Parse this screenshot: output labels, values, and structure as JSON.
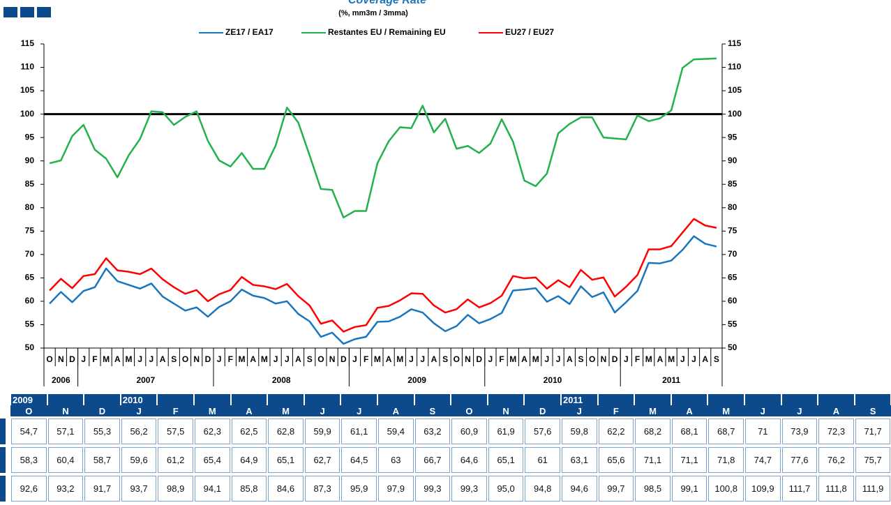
{
  "chart_data": {
    "type": "line",
    "title": "Coverage Rate",
    "subtitle": "(%, mm3m / 3mma)",
    "categories": [
      "O",
      "N",
      "D",
      "J",
      "F",
      "M",
      "A",
      "M",
      "J",
      "J",
      "A",
      "S",
      "O",
      "N",
      "D",
      "J",
      "F",
      "M",
      "A",
      "M",
      "J",
      "J",
      "A",
      "S",
      "O",
      "N",
      "D",
      "J",
      "F",
      "M",
      "A",
      "M",
      "J",
      "J",
      "A",
      "S",
      "O",
      "N",
      "D",
      "J",
      "F",
      "M",
      "A",
      "M",
      "J",
      "J",
      "A",
      "S",
      "O",
      "N",
      "D",
      "J",
      "F",
      "M",
      "A",
      "M",
      "J",
      "J",
      "A",
      "S"
    ],
    "years": [
      "2006",
      "2007",
      "2008",
      "2009",
      "2010",
      "2011"
    ],
    "series": [
      {
        "name": "ZE17 / EA17",
        "color": "#1b75bc",
        "values": [
          59.5,
          62,
          59.8,
          62.2,
          63,
          67,
          64.3,
          63.5,
          62.7,
          63.8,
          61,
          59.5,
          58,
          58.7,
          56.7,
          58.8,
          60,
          62.5,
          61.2,
          60.7,
          59.5,
          60,
          57.3,
          55.7,
          52.4,
          53.3,
          50.9,
          51.9,
          52.4,
          55.6,
          55.7,
          56.7,
          58.3,
          57.6,
          55.3,
          53.6,
          54.7,
          57.1,
          55.3,
          56.2,
          57.5,
          62.3,
          62.5,
          62.8,
          59.9,
          61.1,
          59.4,
          63.2,
          60.9,
          61.9,
          57.6,
          59.8,
          62.2,
          68.2,
          68.1,
          68.7,
          71,
          73.9,
          72.3,
          71.7
        ]
      },
      {
        "name": "Restantes EU / Remaining EU",
        "color": "#22b14c",
        "values": [
          89.5,
          90.1,
          95.3,
          97.7,
          92.4,
          90.5,
          86.5,
          91.2,
          94.7,
          100.6,
          100.4,
          97.7,
          99.4,
          100.6,
          94.3,
          90.1,
          88.8,
          91.7,
          88.3,
          88.3,
          93.3,
          101.4,
          98.2,
          91.2,
          84,
          83.8,
          77.9,
          79.3,
          79.3,
          89.5,
          94.2,
          97.2,
          97,
          101.8,
          96.1,
          99,
          92.6,
          93.2,
          91.7,
          93.7,
          98.9,
          94.1,
          85.8,
          84.6,
          87.3,
          95.9,
          97.9,
          99.3,
          99.3,
          95,
          94.8,
          94.6,
          99.7,
          98.5,
          99.1,
          100.8,
          109.9,
          111.7,
          111.8,
          111.9
        ]
      },
      {
        "name": "EU27 / EU27",
        "color": "#ff0000",
        "values": [
          62.3,
          64.8,
          62.8,
          65.4,
          65.8,
          69.2,
          66.6,
          66.3,
          65.8,
          67,
          64.7,
          63,
          61.6,
          62.4,
          60,
          61.5,
          62.4,
          65.2,
          63.5,
          63.2,
          62.6,
          63.7,
          61.1,
          59.1,
          55.2,
          55.9,
          53.5,
          54.5,
          54.9,
          58.6,
          59,
          60.2,
          61.7,
          61.6,
          59.1,
          57.6,
          58.3,
          60.4,
          58.7,
          59.6,
          61.2,
          65.4,
          64.9,
          65.1,
          62.7,
          64.5,
          63,
          66.7,
          64.6,
          65.1,
          61,
          63.1,
          65.6,
          71.1,
          71.1,
          71.8,
          74.7,
          77.6,
          76.2,
          75.7
        ]
      }
    ],
    "ylim": [
      50,
      115
    ],
    "yticks": [
      50,
      55,
      60,
      65,
      70,
      75,
      80,
      85,
      90,
      95,
      100,
      105,
      110,
      115
    ],
    "y2lim": [
      50,
      115
    ],
    "y2ticks": [
      50,
      55,
      60,
      65,
      70,
      75,
      80,
      85,
      90,
      95,
      100,
      105,
      110,
      115
    ],
    "reference_line": 100,
    "grid": false
  },
  "table": {
    "years": [
      "2009",
      null,
      null,
      "2010",
      null,
      null,
      null,
      null,
      null,
      null,
      null,
      null,
      null,
      null,
      null,
      "2011",
      null,
      null,
      null,
      null,
      null,
      null,
      null,
      null
    ],
    "months": [
      "O",
      "N",
      "D",
      "J",
      "F",
      "M",
      "A",
      "M",
      "J",
      "J",
      "A",
      "S",
      "O",
      "N",
      "D",
      "J",
      "F",
      "M",
      "A",
      "M",
      "J",
      "J",
      "A",
      "S"
    ],
    "rows": [
      [
        "54,7",
        "57,1",
        "55,3",
        "56,2",
        "57,5",
        "62,3",
        "62,5",
        "62,8",
        "59,9",
        "61,1",
        "59,4",
        "63,2",
        "60,9",
        "61,9",
        "57,6",
        "59,8",
        "62,2",
        "68,2",
        "68,1",
        "68,7",
        "71",
        "73,9",
        "72,3",
        "71,7"
      ],
      [
        "58,3",
        "60,4",
        "58,7",
        "59,6",
        "61,2",
        "65,4",
        "64,9",
        "65,1",
        "62,7",
        "64,5",
        "63",
        "66,7",
        "64,6",
        "65,1",
        "61",
        "63,1",
        "65,6",
        "71,1",
        "71,1",
        "71,8",
        "74,7",
        "77,6",
        "76,2",
        "75,7"
      ],
      [
        "92,6",
        "93,2",
        "91,7",
        "93,7",
        "98,9",
        "94,1",
        "85,8",
        "84,6",
        "87,3",
        "95,9",
        "97,9",
        "99,3",
        "99,3",
        "95,0",
        "94,8",
        "94,6",
        "99,7",
        "98,5",
        "99,1",
        "100,8",
        "109,9",
        "111,7",
        "111,8",
        "111,9"
      ]
    ]
  }
}
